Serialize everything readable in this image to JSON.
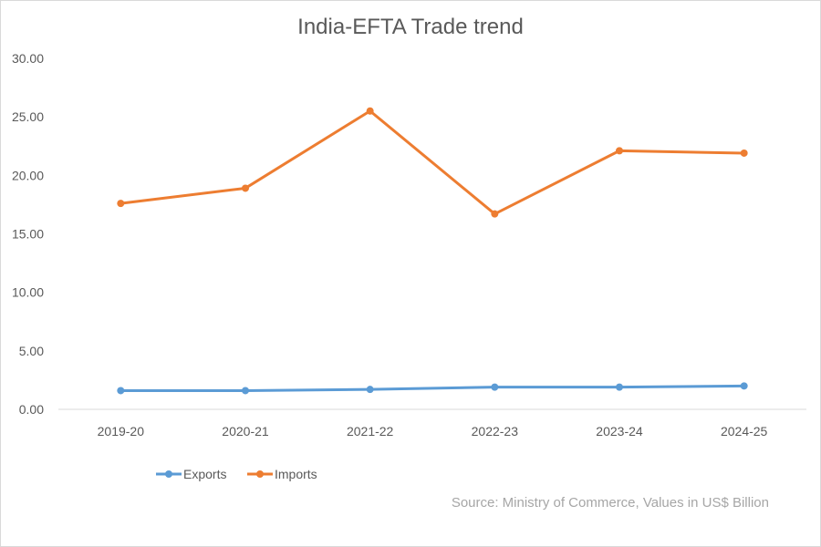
{
  "chart_data": {
    "type": "line",
    "title": "India-EFTA Trade trend",
    "categories": [
      "2019-20",
      "2020-21",
      "2021-22",
      "2022-23",
      "2023-24",
      "2024-25"
    ],
    "series": [
      {
        "name": "Exports",
        "values": [
          1.6,
          1.6,
          1.7,
          1.9,
          1.9,
          2.0
        ],
        "color": "#5b9bd5"
      },
      {
        "name": "Imports",
        "values": [
          17.6,
          18.9,
          25.5,
          16.7,
          22.1,
          21.9
        ],
        "color": "#ed7d31"
      }
    ],
    "y_ticks": [
      "0.00",
      "5.00",
      "10.00",
      "15.00",
      "20.00",
      "25.00",
      "30.00"
    ],
    "ylim": [
      0,
      30
    ],
    "grid": false,
    "legend_placement": "bottom-left",
    "source_text": "Source:  Ministry of Commerce,  Values in US$ Billion"
  }
}
